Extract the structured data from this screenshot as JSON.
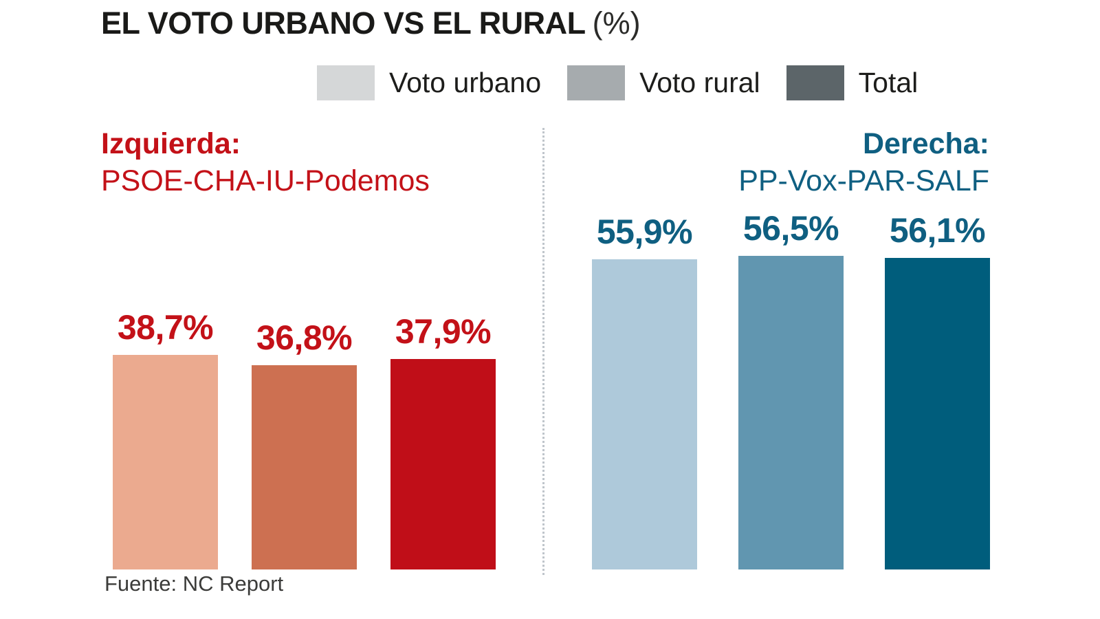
{
  "title": {
    "main": "EL VOTO URBANO VS EL RURAL",
    "unit": "(%)"
  },
  "legend": [
    {
      "label": "Voto urbano",
      "color": "#d5d7d8"
    },
    {
      "label": "Voto rural",
      "color": "#a6abae"
    },
    {
      "label": "Total",
      "color": "#5c6569"
    }
  ],
  "source": "Fuente: NC Report",
  "chart_data": {
    "type": "bar",
    "unit": "%",
    "title": "EL VOTO URBANO VS EL RURAL (%)",
    "categories": [
      "Voto urbano",
      "Voto rural",
      "Total"
    ],
    "legend_position": "top",
    "ylim": [
      0,
      60
    ],
    "value_labels": true,
    "groups": [
      {
        "name": "Izquierda:",
        "subtitle": "PSOE-CHA-IU-Podemos",
        "accent": "#c31118",
        "bars": [
          {
            "category": "Voto urbano",
            "value": 38.7,
            "label": "38,7%",
            "color": "#ebaa8f"
          },
          {
            "category": "Voto rural",
            "value": 36.8,
            "label": "36,8%",
            "color": "#cd7051"
          },
          {
            "category": "Total",
            "value": 37.9,
            "label": "37,9%",
            "color": "#c00e18"
          }
        ]
      },
      {
        "name": "Derecha:",
        "subtitle": "PP-Vox-PAR-SALF",
        "accent": "#0f5f81",
        "bars": [
          {
            "category": "Voto urbano",
            "value": 55.9,
            "label": "55,9%",
            "color": "#aec9da"
          },
          {
            "category": "Voto rural",
            "value": 56.5,
            "label": "56,5%",
            "color": "#6196b0"
          },
          {
            "category": "Total",
            "value": 56.1,
            "label": "56,1%",
            "color": "#005d7c"
          }
        ]
      }
    ]
  }
}
